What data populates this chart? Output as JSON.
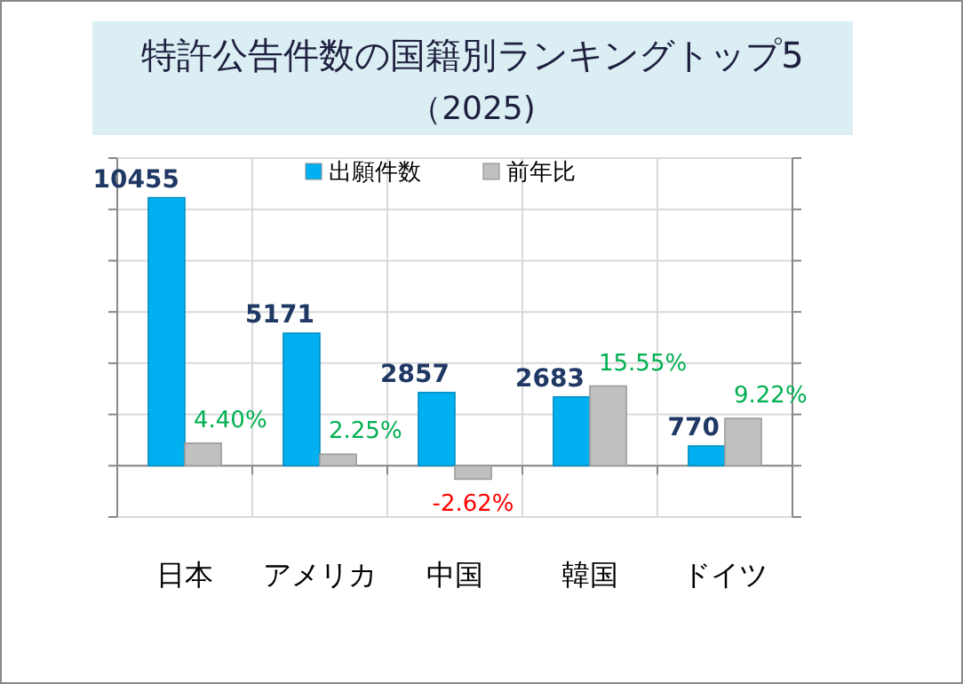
{
  "chart_data": {
    "type": "bar",
    "title": "特許公告件数の国籍別ランキングトップ5",
    "subtitle": "（2025)",
    "categories": [
      "日本",
      "アメリカ",
      "中国",
      "韓国",
      "ドイツ"
    ],
    "series": [
      {
        "name": "出願件数",
        "color": "#00b0f0",
        "values": [
          10455,
          5171,
          2857,
          2683,
          770
        ],
        "value_labels": [
          "10455",
          "5171",
          "2857",
          "2683",
          "770"
        ]
      },
      {
        "name": "前年比",
        "color": "#c0c0c0",
        "axis": "y2",
        "values": [
          4.4,
          2.25,
          -2.62,
          15.55,
          9.22
        ],
        "value_labels": [
          "4.40%",
          "2.25%",
          "-2.62%",
          "15.55%",
          "9.22%"
        ]
      }
    ],
    "ylim": [
      -2000,
      12000
    ],
    "yticks": [
      {
        "value": -2000,
        "label": null
      },
      {
        "value": 0,
        "label": null
      },
      {
        "value": 2000,
        "label": null
      },
      {
        "value": 4000,
        "label": null
      },
      {
        "value": 6000,
        "label": null
      },
      {
        "value": 8000,
        "label": null
      },
      {
        "value": 10000,
        "label": null
      },
      {
        "value": 12000,
        "label": null
      }
    ],
    "y2lim": [
      -10,
      60
    ],
    "y2ticks": [
      {
        "value": -10,
        "label": null
      },
      {
        "value": 0,
        "label": null
      },
      {
        "value": 10,
        "label": null
      },
      {
        "value": 20,
        "label": null
      },
      {
        "value": 30,
        "label": null
      },
      {
        "value": 40,
        "label": null
      },
      {
        "value": 50,
        "label": null
      },
      {
        "value": 60,
        "label": null
      }
    ],
    "tick_labels": "x",
    "grid": true,
    "legend": "top"
  }
}
